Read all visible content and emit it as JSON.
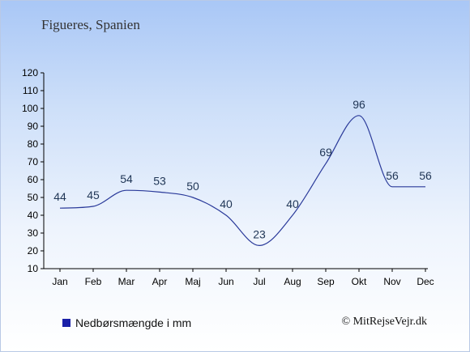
{
  "title": "Figueres, Spanien",
  "legend": {
    "label": "Nedbørsmængde i mm",
    "color": "#1a20a8"
  },
  "credit": "© MitRejseVejr.dk",
  "chart_data": {
    "type": "line",
    "categories": [
      "Jan",
      "Feb",
      "Mar",
      "Apr",
      "Maj",
      "Jun",
      "Jul",
      "Aug",
      "Sep",
      "Okt",
      "Nov",
      "Dec"
    ],
    "series": [
      {
        "name": "Nedbørsmængde i mm",
        "values": [
          44,
          45,
          54,
          53,
          50,
          40,
          23,
          40,
          69,
          96,
          56,
          56
        ]
      }
    ],
    "data_labels": [
      "44",
      "45",
      "54",
      "53",
      "50",
      "40",
      "23",
      "40",
      "69",
      "96",
      "56",
      "56"
    ],
    "yticks": [
      10,
      20,
      30,
      40,
      50,
      60,
      70,
      80,
      90,
      100,
      110,
      120
    ],
    "ylim": [
      10,
      120
    ],
    "xlabel": "",
    "ylabel": "",
    "line_color": "#2a3a9a",
    "grid": false,
    "legend_position": "bottom-left"
  }
}
